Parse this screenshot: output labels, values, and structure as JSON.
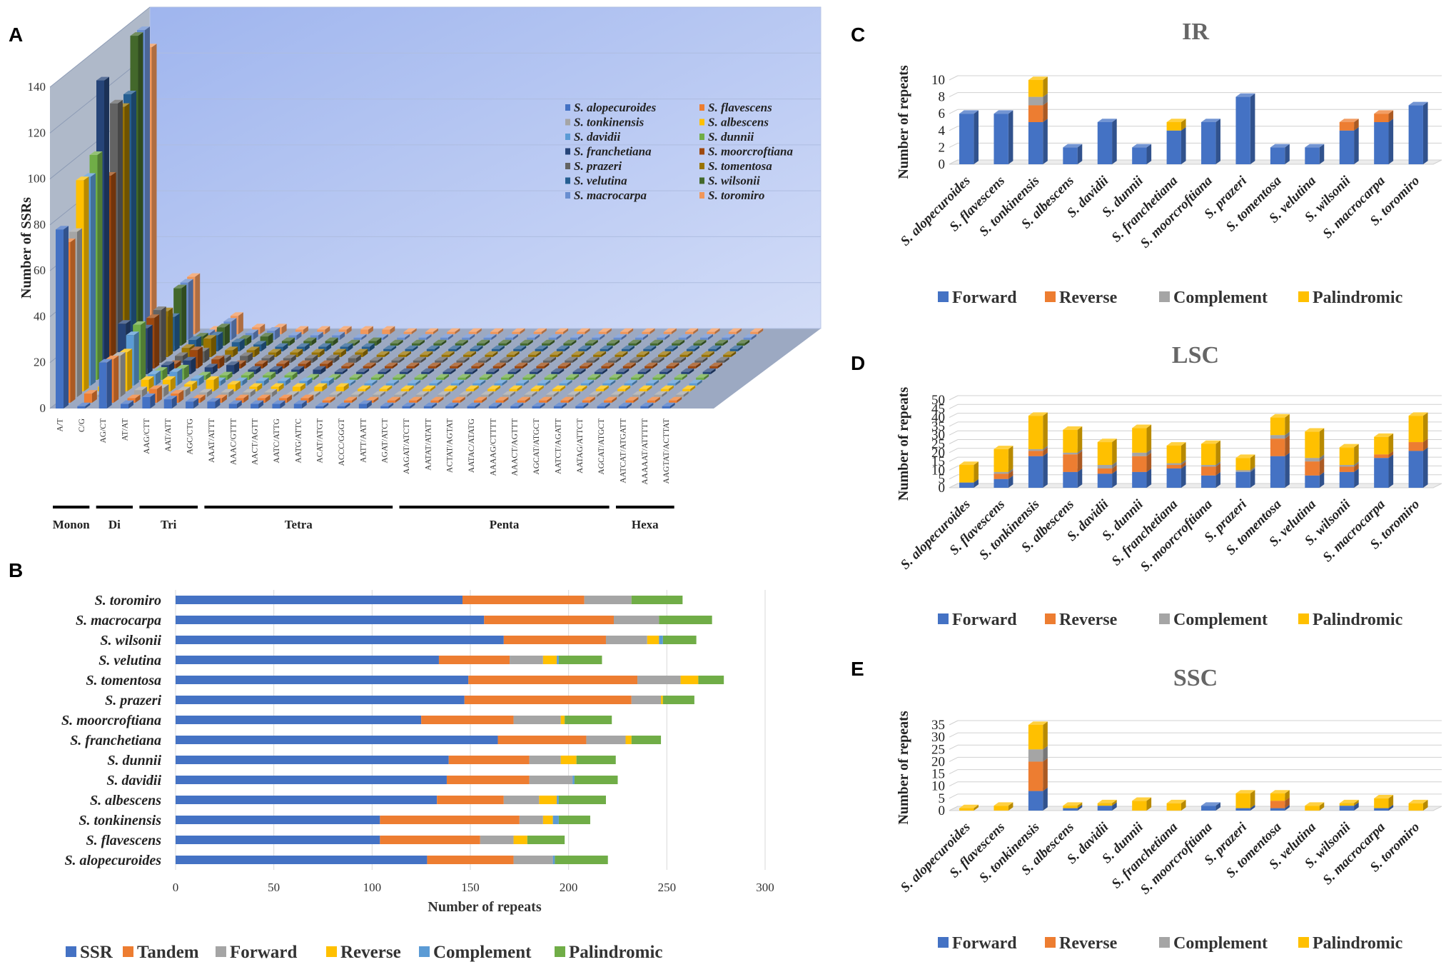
{
  "panel_labels": [
    "A",
    "B",
    "C",
    "D",
    "E"
  ],
  "colors": {
    "ssr": "#4472C4",
    "tandem": "#ED7D31",
    "forward_b": "#A5A5A5",
    "reverse_b": "#FFC000",
    "complement_b": "#5B9BD5",
    "palindromic_b": "#70AD47",
    "forward": "#4472C4",
    "reverse": "#ED7D31",
    "complement": "#A5A5A5",
    "palindromic": "#FFC000",
    "wall": "#b7c8f2",
    "floor": "#9ca9c2",
    "leftwall": "#6e7f9c"
  },
  "species_colors": [
    "#4472C4",
    "#ED7D31",
    "#A5A5A5",
    "#FFC000",
    "#5B9BD5",
    "#70AD47",
    "#264478",
    "#9E480E",
    "#636363",
    "#997300",
    "#255E91",
    "#43682B",
    "#698ED0",
    "#F1975A"
  ],
  "chart_data": [
    {
      "panel": "A",
      "type": "bar",
      "title": "",
      "ylabel": "Number of SSRs",
      "ylim": [
        0,
        140
      ],
      "yticks": [
        0,
        20,
        40,
        60,
        80,
        100,
        120,
        140
      ],
      "categories": [
        "A/T",
        "C/G",
        "AG/CT",
        "AT/AT",
        "AAG/CTT",
        "AAT/ATT",
        "AGC/CTG",
        "AAAT/ATTT",
        "AAAC/GTTT",
        "AACT/AGTT",
        "AATC/ATTG",
        "AATG/ATTC",
        "ACAT/ATGT",
        "ACCC/GGGT",
        "AATT/AATT",
        "AGAT/ATCT",
        "AAGAT/ATCTT",
        "AATAT/ATATT",
        "ACTAT/AGTAT",
        "AATAC/ATATG",
        "AAAAG/CTTTT",
        "AAACT/AGTTT",
        "AGCAT/ATGCT",
        "AATCT/AGATT",
        "AATAG/ATTCT",
        "AGCAT/ATGCT",
        "AATCAT/ATGATT",
        "AAAAAT/ATTTTT",
        "AAGTAT/ACTTAT"
      ],
      "groups": [
        {
          "label": "Monon",
          "start": 0,
          "end": 1
        },
        {
          "label": "Di",
          "start": 2,
          "end": 3
        },
        {
          "label": "Tri",
          "start": 4,
          "end": 6
        },
        {
          "label": "Tetra",
          "start": 7,
          "end": 15
        },
        {
          "label": "Penta",
          "start": 16,
          "end": 25
        },
        {
          "label": "Hexa",
          "start": 26,
          "end": 28
        }
      ],
      "series_names": [
        "S. alopecuroides",
        "S. flavescens",
        "S. tonkinensis",
        "S. albescens",
        "S. davidii",
        "S. dunnii",
        "S. franchetiana",
        "S. moorcroftiana",
        "S. prazeri",
        "S. tomentosa",
        "S. velutina",
        "S. wilsonii",
        "S. macrocarpa",
        "S. toromiro"
      ],
      "values": [
        [
          78,
          70,
          72,
          92,
          91,
          98,
          128,
          84,
          113,
          109,
          112,
          135,
          135,
          125
        ],
        [
          1,
          4,
          1,
          2,
          2,
          2,
          22,
          1,
          2,
          2,
          1,
          1,
          1,
          2
        ],
        [
          20,
          19,
          18,
          17,
          22,
          24,
          20,
          22,
          23,
          20,
          15,
          25,
          25,
          25
        ],
        [
          2,
          2,
          3,
          5,
          5,
          4,
          4,
          2,
          3,
          4,
          5,
          4,
          3,
          2
        ],
        [
          5,
          6,
          4,
          5,
          6,
          5,
          6,
          8,
          5,
          8,
          7,
          8,
          8,
          8
        ],
        [
          4,
          4,
          3,
          3,
          3,
          2,
          3,
          4,
          2,
          3,
          4,
          3,
          3,
          3
        ],
        [
          3,
          2,
          2,
          5,
          2,
          2,
          4,
          2,
          3,
          3,
          3,
          4,
          4,
          3
        ],
        [
          3,
          2,
          2,
          3,
          2,
          2,
          2,
          2,
          2,
          2,
          2,
          2,
          2,
          2
        ],
        [
          2,
          2,
          2,
          2,
          2,
          2,
          2,
          2,
          2,
          2,
          2,
          2,
          2,
          2
        ],
        [
          2,
          2,
          2,
          2,
          2,
          2,
          2,
          2,
          2,
          2,
          2,
          2,
          2,
          2
        ],
        [
          2,
          2,
          1,
          2,
          2,
          1,
          2,
          2,
          2,
          2,
          2,
          1,
          1,
          2
        ],
        [
          2,
          2,
          1,
          2,
          2,
          1,
          1,
          1,
          2,
          2,
          2,
          2,
          1,
          2
        ],
        [
          1,
          1,
          1,
          2,
          1,
          1,
          1,
          1,
          1,
          1,
          1,
          1,
          1,
          1
        ],
        [
          1,
          1,
          1,
          1,
          1,
          1,
          1,
          1,
          1,
          1,
          1,
          1,
          1,
          1
        ],
        [
          2,
          1,
          1,
          1,
          1,
          1,
          1,
          1,
          1,
          1,
          1,
          1,
          1,
          1
        ],
        [
          1,
          1,
          1,
          1,
          1,
          1,
          1,
          1,
          1,
          1,
          1,
          1,
          1,
          1
        ],
        [
          1,
          1,
          1,
          1,
          1,
          1,
          1,
          1,
          1,
          1,
          1,
          1,
          1,
          1
        ],
        [
          1,
          1,
          1,
          1,
          1,
          1,
          1,
          1,
          1,
          1,
          1,
          1,
          1,
          1
        ],
        [
          1,
          1,
          1,
          1,
          1,
          1,
          1,
          1,
          1,
          1,
          1,
          1,
          1,
          1
        ],
        [
          1,
          1,
          1,
          1,
          1,
          1,
          1,
          1,
          1,
          1,
          1,
          1,
          1,
          1
        ],
        [
          1,
          1,
          1,
          1,
          1,
          1,
          1,
          1,
          1,
          1,
          1,
          1,
          1,
          1
        ],
        [
          1,
          1,
          1,
          1,
          1,
          1,
          1,
          1,
          1,
          1,
          1,
          1,
          1,
          1
        ],
        [
          1,
          1,
          1,
          1,
          1,
          1,
          1,
          1,
          1,
          1,
          1,
          1,
          1,
          1
        ],
        [
          1,
          1,
          1,
          1,
          1,
          1,
          1,
          1,
          1,
          1,
          1,
          1,
          1,
          1
        ],
        [
          1,
          1,
          1,
          1,
          1,
          1,
          1,
          1,
          1,
          1,
          1,
          1,
          1,
          1
        ],
        [
          1,
          1,
          1,
          1,
          1,
          1,
          1,
          1,
          1,
          1,
          1,
          1,
          1,
          1
        ],
        [
          1,
          1,
          1,
          1,
          1,
          1,
          1,
          1,
          1,
          1,
          1,
          1,
          1,
          1
        ],
        [
          1,
          1,
          1,
          1,
          1,
          1,
          1,
          1,
          1,
          1,
          1,
          1,
          1,
          1
        ],
        [
          1,
          1,
          1,
          1,
          1,
          1,
          1,
          1,
          1,
          1,
          1,
          1,
          1,
          1
        ]
      ]
    },
    {
      "panel": "B",
      "type": "bar",
      "orientation": "horizontal",
      "stacked": true,
      "xlabel": "Number of repeats",
      "xlim": [
        0,
        300
      ],
      "xticks": [
        0,
        50,
        100,
        150,
        200,
        250,
        300
      ],
      "categories": [
        "S. alopecuroides",
        "S. flavescens",
        "S. tonkinensis",
        "S. albescens",
        "S. davidii",
        "S. dunnii",
        "S. franchetiana",
        "S. moorcroftiana",
        "S. prazeri",
        "S. tomentosa",
        "S. velutina",
        "S. wilsonii",
        "S. macrocarpa",
        "S. toromiro"
      ],
      "series": [
        {
          "name": "SSR",
          "values": [
            128,
            104,
            104,
            133,
            138,
            139,
            164,
            125,
            147,
            149,
            134,
            167,
            157,
            146
          ]
        },
        {
          "name": "Tandem",
          "values": [
            44,
            51,
            71,
            34,
            42,
            41,
            45,
            47,
            85,
            86,
            36,
            52,
            66,
            62
          ]
        },
        {
          "name": "Forward",
          "values": [
            20,
            17,
            12,
            18,
            22,
            16,
            20,
            24,
            15,
            22,
            17,
            21,
            23,
            24
          ]
        },
        {
          "name": "Reverse",
          "values": [
            0,
            7,
            5,
            9,
            0,
            8,
            3,
            2,
            1,
            9,
            7,
            6,
            0,
            0
          ]
        },
        {
          "name": "Complement",
          "values": [
            1,
            0,
            3,
            1,
            1,
            0,
            0,
            0,
            0,
            0,
            1,
            2,
            0,
            0
          ]
        },
        {
          "name": "Palindromic",
          "values": [
            27,
            19,
            16,
            24,
            22,
            20,
            15,
            24,
            16,
            13,
            22,
            17,
            27,
            26
          ]
        }
      ]
    },
    {
      "panel": "C",
      "type": "bar",
      "stacked": true,
      "title": "IR",
      "ylabel": "Number of repeats",
      "ylim": [
        0,
        10
      ],
      "yticks": [
        0,
        2,
        4,
        6,
        8,
        10
      ],
      "categories": [
        "S. alopecuroides",
        "S. flavescens",
        "S. tonkinensis",
        "S. albescens",
        "S. davidii",
        "S. dunnii",
        "S. franchetiana",
        "S. moorcroftiana",
        "S. prazeri",
        "S. tomentosa",
        "S. velutina",
        "S. wilsonii",
        "S. macrocarpa",
        "S. toromiro"
      ],
      "series": [
        {
          "name": "Forward",
          "values": [
            6,
            6,
            5,
            2,
            5,
            2,
            4,
            5,
            8,
            2,
            2,
            4,
            5,
            7
          ]
        },
        {
          "name": "Reverse",
          "values": [
            0,
            0,
            2,
            0,
            0,
            0,
            0,
            0,
            0,
            0,
            0,
            1,
            1,
            0
          ]
        },
        {
          "name": "Complement",
          "values": [
            0,
            0,
            1,
            0,
            0,
            0,
            0,
            0,
            0,
            0,
            0,
            0,
            0,
            0
          ]
        },
        {
          "name": "Palindromic",
          "values": [
            0,
            0,
            2,
            0,
            0,
            0,
            1,
            0,
            0,
            0,
            0,
            0,
            0,
            0
          ]
        }
      ]
    },
    {
      "panel": "D",
      "type": "bar",
      "stacked": true,
      "title": "LSC",
      "ylabel": "Number of repeats",
      "ylim": [
        0,
        50
      ],
      "yticks": [
        0,
        5,
        10,
        15,
        20,
        25,
        30,
        35,
        40,
        45,
        50
      ],
      "categories": [
        "S. alopecuroides",
        "S. flavescens",
        "S. tonkinensis",
        "S. albescens",
        "S. davidii",
        "S. dunnii",
        "S. franchetiana",
        "S. moorcroftiana",
        "S. prazeri",
        "S. tomentosa",
        "S. velutina",
        "S. wilsonii",
        "S. macrocarpa",
        "S. toromiro"
      ],
      "series": [
        {
          "name": "Forward",
          "values": [
            3,
            5,
            18,
            9,
            8,
            9,
            11,
            7,
            9,
            18,
            7,
            9,
            17,
            21
          ]
        },
        {
          "name": "Reverse",
          "values": [
            0,
            3,
            3,
            10,
            3,
            9,
            2,
            5,
            0,
            10,
            8,
            3,
            2,
            5
          ]
        },
        {
          "name": "Complement",
          "values": [
            0,
            1,
            1,
            1,
            2,
            2,
            1,
            1,
            1,
            2,
            2,
            1,
            0,
            0
          ]
        },
        {
          "name": "Palindromic",
          "values": [
            10,
            13,
            19,
            13,
            13,
            14,
            10,
            12,
            7,
            10,
            15,
            10,
            10,
            15
          ]
        }
      ]
    },
    {
      "panel": "E",
      "type": "bar",
      "stacked": true,
      "title": "SSC",
      "ylabel": "Number of repeats",
      "ylim": [
        0,
        35
      ],
      "yticks": [
        0,
        5,
        10,
        15,
        20,
        25,
        30,
        35
      ],
      "categories": [
        "S. alopecuroides",
        "S. flavescens",
        "S. tonkinensis",
        "S. albescens",
        "S. davidii",
        "S. dunnii",
        "S. franchetiana",
        "S. moorcroftiana",
        "S. prazeri",
        "S. tomentosa",
        "S. velutina",
        "S. wilsonii",
        "S. macrocarpa",
        "S. toromiro"
      ],
      "series": [
        {
          "name": "Forward",
          "values": [
            0,
            0,
            8,
            1,
            2,
            0,
            0,
            2,
            1,
            1,
            0,
            2,
            1,
            0
          ]
        },
        {
          "name": "Reverse",
          "values": [
            0,
            0,
            12,
            0,
            0,
            0,
            0,
            0,
            0,
            3,
            0,
            0,
            0,
            0
          ]
        },
        {
          "name": "Complement",
          "values": [
            0,
            0,
            5,
            0,
            0,
            0,
            0,
            0,
            0,
            0,
            0,
            0,
            0,
            0
          ]
        },
        {
          "name": "Palindromic",
          "values": [
            1,
            2,
            10,
            1,
            1,
            4,
            3,
            0,
            6,
            3,
            2,
            1,
            4,
            3
          ]
        }
      ]
    }
  ]
}
